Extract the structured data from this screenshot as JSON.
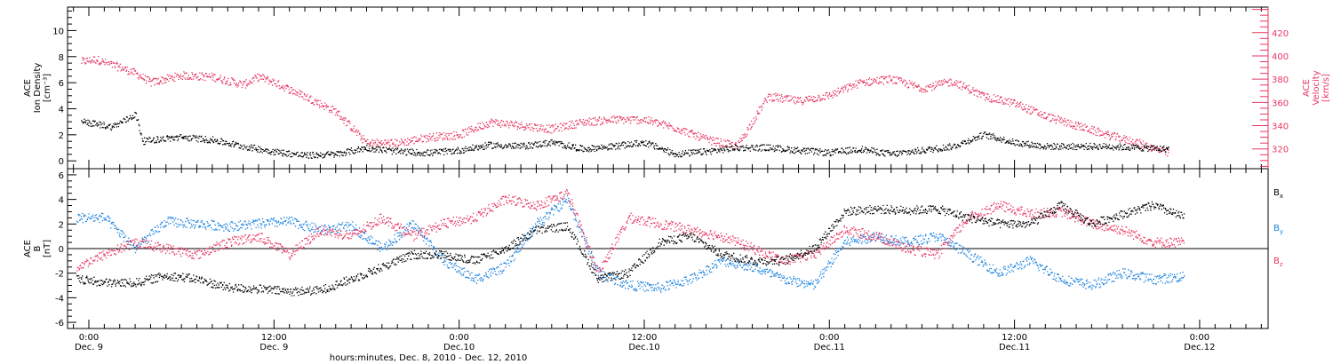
{
  "colors": {
    "black": "#000000",
    "pink": "#e8365f",
    "blue": "#1a82e0"
  },
  "figure": {
    "xlabel": "hours:minutes, Dec. 8, 2010 - Dec. 12, 2010",
    "xticks": [
      {
        "h": 0,
        "label1": "0:00",
        "label2": "Dec. 9"
      },
      {
        "h": 12,
        "label1": "12:00",
        "label2": "Dec. 9"
      },
      {
        "h": 24,
        "label1": "0:00",
        "label2": "Dec.10"
      },
      {
        "h": 36,
        "label1": "12:00",
        "label2": "Dec.10"
      },
      {
        "h": 48,
        "label1": "0:00",
        "label2": "Dec.11"
      },
      {
        "h": 60,
        "label1": "12:00",
        "label2": "Dec.11"
      },
      {
        "h": 72,
        "label1": "0:00",
        "label2": "Dec.12"
      }
    ]
  },
  "chart_data": [
    {
      "type": "scatter",
      "panel": "top",
      "ylabel_left": [
        "ACE",
        "Ion Density",
        "[cm⁻³]"
      ],
      "ylabel_right": [
        "ACE",
        "Velocity",
        "[km/s]"
      ],
      "ylim_left": [
        -0.6,
        11.8
      ],
      "ylim_right": [
        303,
        442
      ],
      "yticks_left": [
        0,
        2,
        4,
        6,
        8,
        10
      ],
      "yticks_right": [
        320,
        340,
        360,
        380,
        400,
        420
      ],
      "x_unit": "hours from Dec. 9 0:00",
      "series": [
        {
          "axis": "left",
          "color": "black",
          "x": [
            -0.5,
            0.5,
            1.5,
            2.5,
            3,
            3.5,
            4,
            6,
            8,
            10,
            12,
            14,
            16,
            18,
            20,
            22,
            24,
            26,
            28,
            30,
            32,
            34,
            36,
            38,
            40,
            42,
            44,
            46,
            48,
            50,
            52,
            54,
            56,
            58,
            60,
            62,
            64,
            66,
            68,
            70
          ],
          "y": [
            3,
            2.8,
            2.6,
            3.2,
            3.6,
            1.5,
            1.6,
            1.8,
            1.6,
            1.1,
            0.7,
            0.4,
            0.5,
            1.0,
            0.7,
            0.6,
            0.8,
            1.2,
            1.1,
            1.4,
            0.9,
            1.1,
            1.4,
            0.5,
            0.7,
            1.0,
            1.0,
            0.8,
            0.6,
            0.9,
            0.5,
            0.8,
            1.1,
            2.0,
            1.4,
            1.1,
            1.1,
            1.1,
            1.0,
            0.9
          ]
        },
        {
          "axis": "right",
          "color": "pink",
          "x": [
            -0.5,
            0.5,
            1,
            2,
            3,
            4,
            6,
            8,
            10,
            11,
            12,
            14,
            16,
            18,
            20,
            22,
            24,
            26,
            28,
            30,
            32,
            34,
            36,
            38,
            40,
            42,
            44,
            46,
            48,
            50,
            52,
            54,
            56,
            58,
            60,
            62,
            64,
            66,
            68,
            70
          ],
          "y": [
            395,
            397,
            394,
            390,
            385,
            377,
            383,
            382,
            375,
            382,
            377,
            365,
            352,
            325,
            325,
            330,
            332,
            343,
            340,
            337,
            343,
            345,
            345,
            338,
            328,
            322,
            365,
            361,
            366,
            377,
            380,
            372,
            378,
            365,
            359,
            348,
            340,
            332,
            325,
            316
          ]
        }
      ]
    },
    {
      "type": "scatter",
      "panel": "bottom",
      "ylabel_left": [
        "ACE",
        "B",
        "[nT]"
      ],
      "ylim": [
        -6.5,
        6.5
      ],
      "yticks": [
        -6,
        -4,
        -2,
        0,
        2,
        4,
        6
      ],
      "x_unit": "hours from Dec. 9 0:00",
      "series": [
        {
          "name": "Bx",
          "color": "black",
          "x": [
            -0.8,
            1,
            3,
            5,
            7,
            9,
            11,
            13,
            15,
            17,
            19,
            21,
            23,
            25,
            27,
            29,
            31,
            33,
            35,
            37,
            39,
            41,
            43,
            45,
            47,
            49,
            51,
            53,
            55,
            57,
            59,
            61,
            63,
            65,
            67,
            69,
            71
          ],
          "y": [
            -2.5,
            -2.8,
            -2.8,
            -2.2,
            -2.5,
            -3.2,
            -3.3,
            -3.5,
            -3.4,
            -2.5,
            -1.5,
            -0.5,
            -0.5,
            -1.0,
            0.0,
            1.5,
            1.8,
            -2.5,
            -2.0,
            0.5,
            1.0,
            -0.5,
            -1.0,
            -1.0,
            0.0,
            3.0,
            3.2,
            3.1,
            3.2,
            2.5,
            2.0,
            2.0,
            3.5,
            2.0,
            2.8,
            3.5,
            2.5
          ]
        },
        {
          "name": "By",
          "color": "blue",
          "x": [
            -0.8,
            1,
            3,
            5,
            7,
            9,
            11,
            13,
            15,
            17,
            19,
            21,
            23,
            25,
            27,
            29,
            31,
            33,
            35,
            37,
            39,
            41,
            43,
            45,
            47,
            49,
            51,
            53,
            55,
            57,
            59,
            61,
            63,
            65,
            67,
            69,
            71
          ],
          "y": [
            2.5,
            2.5,
            0.0,
            2.2,
            2.0,
            1.8,
            2.0,
            2.2,
            1.5,
            1.8,
            0.0,
            2.0,
            -1.0,
            -2.5,
            -1.5,
            2.0,
            4.0,
            -2.0,
            -3.0,
            -3.2,
            -2.5,
            -1.0,
            -1.5,
            -2.5,
            -3.0,
            0.5,
            1.0,
            0.5,
            1.0,
            -0.5,
            -2.0,
            -1.0,
            -2.5,
            -3.0,
            -2.0,
            -2.5,
            -2.3
          ]
        },
        {
          "name": "Bz",
          "color": "pink",
          "x": [
            -0.8,
            1,
            3,
            5,
            7,
            9,
            11,
            13,
            15,
            17,
            19,
            21,
            23,
            25,
            27,
            29,
            31,
            33,
            35,
            37,
            39,
            41,
            43,
            45,
            47,
            49,
            51,
            53,
            55,
            57,
            59,
            61,
            63,
            65,
            67,
            69,
            71
          ],
          "y": [
            -1.5,
            -0.5,
            0.5,
            0.0,
            -0.5,
            0.5,
            1.0,
            -0.5,
            1.5,
            1.0,
            2.5,
            1.0,
            2.0,
            2.5,
            4.0,
            3.5,
            4.5,
            -2.0,
            2.5,
            2.0,
            1.5,
            1.0,
            0.0,
            -1.0,
            -0.5,
            1.5,
            1.0,
            0.0,
            -0.5,
            2.5,
            3.5,
            2.8,
            3.0,
            2.0,
            1.5,
            0.5,
            0.5
          ]
        }
      ]
    }
  ]
}
